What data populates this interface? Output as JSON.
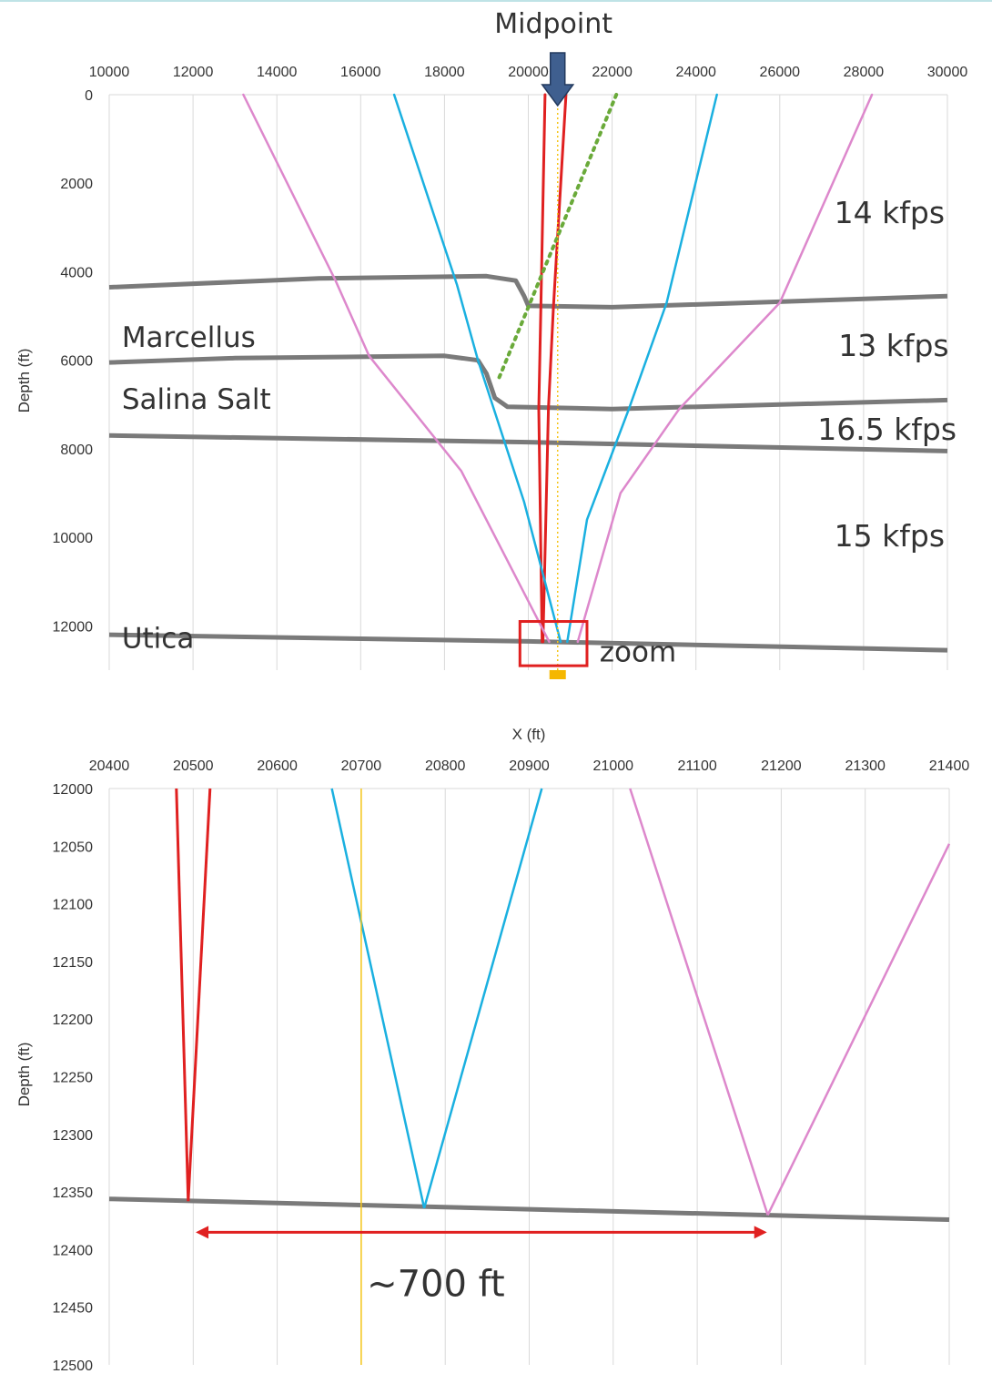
{
  "top_border_color": "#bfe3e6",
  "chart_data": [
    {
      "id": "overview",
      "type": "line",
      "xlabel": "X (ft)",
      "ylabel": "Depth (ft)",
      "xlim": [
        10000,
        30000
      ],
      "ylim": [
        0,
        13000
      ],
      "y_inverted": true,
      "x_axis_position": "top",
      "x_ticks": [
        10000,
        12000,
        14000,
        16000,
        18000,
        20000,
        22000,
        24000,
        26000,
        28000,
        30000
      ],
      "y_ticks": [
        0,
        2000,
        4000,
        6000,
        8000,
        10000,
        12000
      ],
      "grid": true,
      "colors": {
        "horizon": "#7a7a7a",
        "ray_red": "#e02020",
        "ray_blue": "#1ab0e0",
        "ray_pink": "#dd88cc",
        "ray_green": "#6aaa3a",
        "midline": "#f5c518",
        "zoom": "#e02020"
      },
      "horizons": [
        {
          "name": "top",
          "points": [
            [
              10000,
              4350
            ],
            [
              15000,
              4150
            ],
            [
              19000,
              4100
            ],
            [
              19700,
              4200
            ],
            [
              19900,
              4550
            ],
            [
              20000,
              4770
            ],
            [
              22000,
              4800
            ],
            [
              30000,
              4550
            ]
          ]
        },
        {
          "name": "Marcellus",
          "points": [
            [
              10000,
              6050
            ],
            [
              13000,
              5950
            ],
            [
              18000,
              5900
            ],
            [
              18800,
              6000
            ],
            [
              19000,
              6300
            ],
            [
              19200,
              6850
            ],
            [
              19500,
              7050
            ],
            [
              22000,
              7100
            ],
            [
              30000,
              6900
            ]
          ]
        },
        {
          "name": "Salina Salt",
          "points": [
            [
              10000,
              7700
            ],
            [
              20000,
              7850
            ],
            [
              30000,
              8050
            ]
          ]
        },
        {
          "name": "Utica",
          "points": [
            [
              10000,
              12200
            ],
            [
              20000,
              12350
            ],
            [
              30000,
              12550
            ]
          ]
        }
      ],
      "rays": [
        {
          "color": "red",
          "points": [
            [
              20400,
              0
            ],
            [
              20300,
              4800
            ],
            [
              20250,
              7100
            ],
            [
              20330,
              12360
            ]
          ]
        },
        {
          "color": "red",
          "points": [
            [
              20900,
              0
            ],
            [
              20600,
              4800
            ],
            [
              20480,
              7100
            ],
            [
              20350,
              12360
            ]
          ]
        },
        {
          "color": "blue",
          "points": [
            [
              16800,
              0
            ],
            [
              18300,
              4300
            ],
            [
              18800,
              6000
            ],
            [
              19900,
              9200
            ],
            [
              20770,
              12360
            ]
          ]
        },
        {
          "color": "blue",
          "points": [
            [
              24500,
              0
            ],
            [
              23300,
              4700
            ],
            [
              22400,
              7100
            ],
            [
              21400,
              9600
            ],
            [
              20930,
              12360
            ]
          ]
        },
        {
          "color": "pink",
          "points": [
            [
              13200,
              0
            ],
            [
              15400,
              4200
            ],
            [
              16200,
              5900
            ],
            [
              18400,
              8500
            ],
            [
              20500,
              12360
            ]
          ]
        },
        {
          "color": "pink",
          "points": [
            [
              28200,
              0
            ],
            [
              26000,
              4700
            ],
            [
              23600,
              7100
            ],
            [
              22200,
              9000
            ],
            [
              21180,
              12360
            ]
          ]
        },
        {
          "color": "green",
          "points": [
            [
              22100,
              0
            ],
            [
              19300,
              6400
            ]
          ]
        }
      ],
      "midline_x": 20700,
      "zoom_box": {
        "x": [
          19800,
          21400
        ],
        "y": [
          11900,
          12900
        ]
      },
      "annotations": [
        {
          "text": "Midpoint",
          "x": 20600,
          "y": -1400
        },
        {
          "text": "14 kfps",
          "x": 27300,
          "y": 2900
        },
        {
          "text": "13 kfps",
          "x": 27400,
          "y": 5900
        },
        {
          "text": "16.5 kfps",
          "x": 26900,
          "y": 7800
        },
        {
          "text": "15 kfps",
          "x": 27300,
          "y": 10200
        },
        {
          "text": "Marcellus",
          "x": 10300,
          "y": 5700
        },
        {
          "text": "Salina Salt",
          "x": 10300,
          "y": 7100
        },
        {
          "text": "Utica",
          "x": 10300,
          "y": 12500
        },
        {
          "text": "zoom",
          "x": 21700,
          "y": 12800
        }
      ]
    },
    {
      "id": "zoom",
      "type": "line",
      "xlabel": "X (ft)",
      "ylabel": "Depth (ft)",
      "xlim": [
        20400,
        21400
      ],
      "ylim": [
        12000,
        12500
      ],
      "y_inverted": true,
      "x_axis_position": "top",
      "x_ticks": [
        20400,
        20500,
        20600,
        20700,
        20800,
        20900,
        21000,
        21100,
        21200,
        21300,
        21400
      ],
      "y_ticks": [
        12000,
        12050,
        12100,
        12150,
        12200,
        12250,
        12300,
        12350,
        12400,
        12450,
        12500
      ],
      "grid": true,
      "horizon": [
        [
          20400,
          12356
        ],
        [
          21400,
          12374
        ]
      ],
      "rays": [
        {
          "color": "red",
          "points": [
            [
              20480,
              12000
            ],
            [
              20494,
              12358
            ]
          ]
        },
        {
          "color": "red",
          "points": [
            [
              20520,
              12000
            ],
            [
              20494,
              12358
            ]
          ]
        },
        {
          "color": "blue",
          "points": [
            [
              20665,
              12000
            ],
            [
              20775,
              12364
            ]
          ]
        },
        {
          "color": "blue",
          "points": [
            [
              20915,
              12000
            ],
            [
              20775,
              12364
            ]
          ]
        },
        {
          "color": "pink",
          "points": [
            [
              21020,
              12000
            ],
            [
              21184,
              12370
            ]
          ]
        },
        {
          "color": "pink",
          "points": [
            [
              21400,
              12048
            ],
            [
              21184,
              12370
            ]
          ]
        }
      ],
      "midline_x": 20700,
      "measure": {
        "x": [
          20503,
          21183
        ],
        "y": 12385,
        "label": "~700 ft"
      }
    }
  ]
}
